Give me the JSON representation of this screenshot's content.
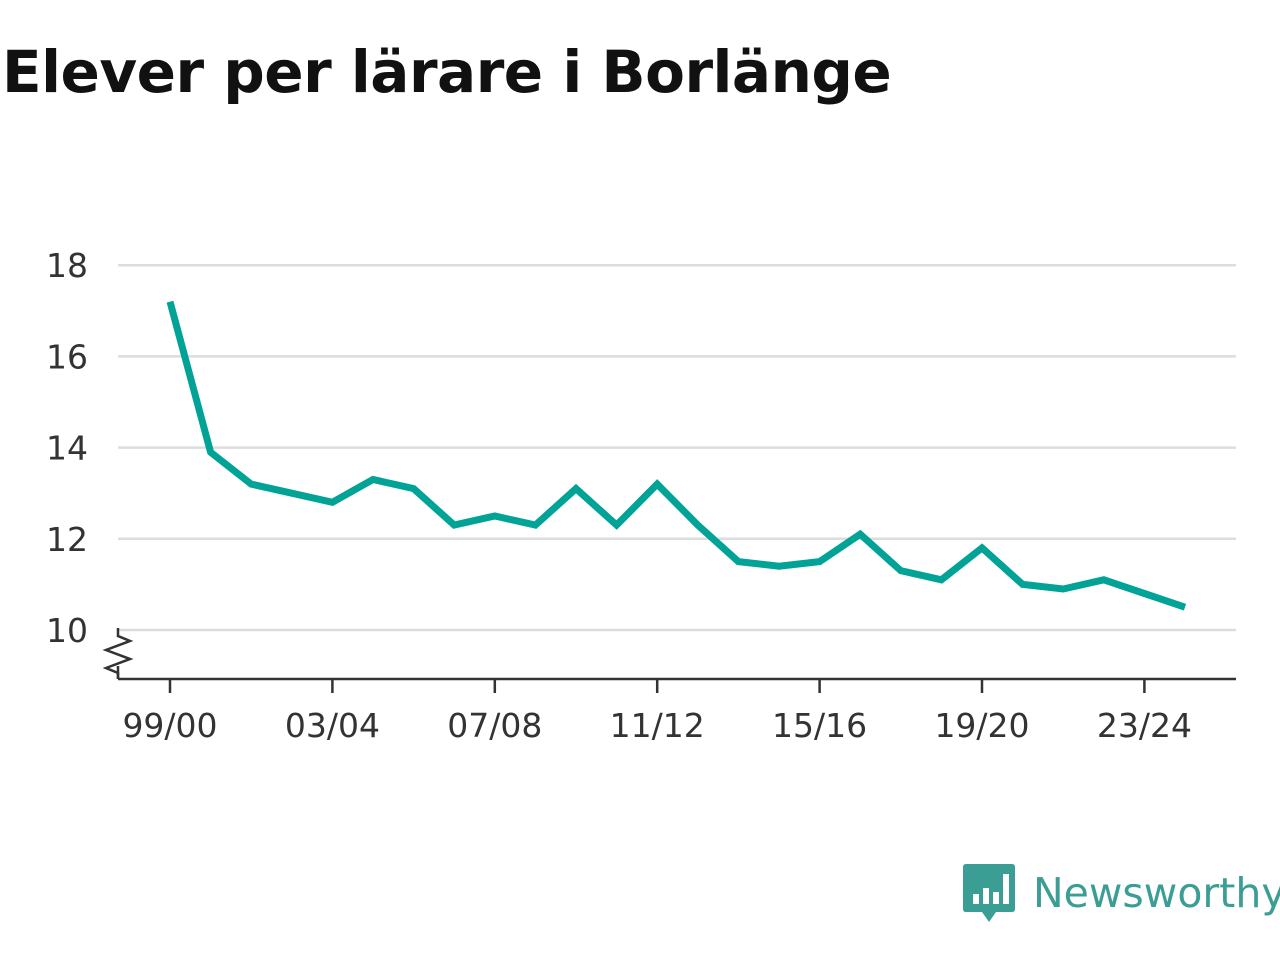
{
  "title": "Elever per lärare i Borlänge",
  "brand": {
    "name": "Newsworthy",
    "icon": "bar-chart-bubble-icon",
    "color": "#3a9e95"
  },
  "chart_data": {
    "type": "line",
    "title": "Elever per lärare i Borlänge",
    "xlabel": "",
    "ylabel": "",
    "x": [
      "99/00",
      "00/01",
      "01/02",
      "02/03",
      "03/04",
      "04/05",
      "05/06",
      "06/07",
      "07/08",
      "08/09",
      "09/10",
      "10/11",
      "11/12",
      "12/13",
      "13/14",
      "14/15",
      "15/16",
      "16/17",
      "17/18",
      "18/19",
      "19/20",
      "20/21",
      "21/22",
      "22/23",
      "23/24",
      "24/25"
    ],
    "x_tick_labels": [
      "99/00",
      "03/04",
      "07/08",
      "11/12",
      "15/16",
      "19/20",
      "23/24"
    ],
    "series": [
      {
        "color": "#00a396",
        "values": [
          17.2,
          13.9,
          13.2,
          13.0,
          12.8,
          13.3,
          13.1,
          12.3,
          12.5,
          12.3,
          13.1,
          12.3,
          13.2,
          12.3,
          11.5,
          11.4,
          11.5,
          12.1,
          11.3,
          11.1,
          11.8,
          11.0,
          10.9,
          11.1,
          10.8,
          10.5
        ]
      }
    ],
    "y_ticks": [
      10,
      12,
      14,
      16,
      18
    ],
    "ylim": [
      9,
      18
    ],
    "y_axis_break": true,
    "grid": true,
    "legend": "none"
  }
}
